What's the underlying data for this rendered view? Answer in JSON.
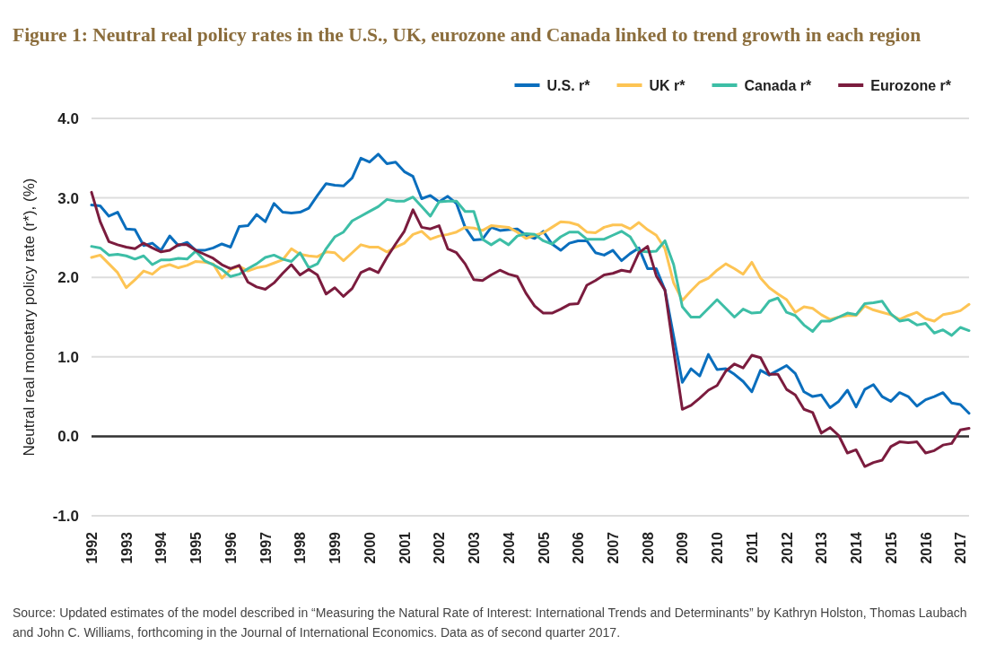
{
  "chart_data": {
    "type": "line",
    "title": "Figure 1: Neutral real policy rates in the U.S., UK, eurozone and Canada linked to trend growth in each region",
    "ylabel": "Neutral real monetary policy rate (r*), (%)",
    "x": [
      1992,
      1992.25,
      1992.5,
      1992.75,
      1993,
      1993.25,
      1993.5,
      1993.75,
      1994,
      1994.25,
      1994.5,
      1994.75,
      1995,
      1995.25,
      1995.5,
      1995.75,
      1996,
      1996.25,
      1996.5,
      1996.75,
      1997,
      1997.25,
      1997.5,
      1997.75,
      1998,
      1998.25,
      1998.5,
      1998.75,
      1999,
      1999.25,
      1999.5,
      1999.75,
      2000,
      2000.25,
      2000.5,
      2000.75,
      2001,
      2001.25,
      2001.5,
      2001.75,
      2002,
      2002.25,
      2002.5,
      2002.75,
      2003,
      2003.25,
      2003.5,
      2003.75,
      2004,
      2004.25,
      2004.5,
      2004.75,
      2005,
      2005.25,
      2005.5,
      2005.75,
      2006,
      2006.25,
      2006.5,
      2006.75,
      2007,
      2007.25,
      2007.5,
      2007.75,
      2008,
      2008.25,
      2008.5,
      2008.75,
      2009,
      2009.25,
      2009.5,
      2009.75,
      2010,
      2010.25,
      2010.5,
      2010.75,
      2011,
      2011.25,
      2011.5,
      2011.75,
      2012,
      2012.25,
      2012.5,
      2012.75,
      2013,
      2013.25,
      2013.5,
      2013.75,
      2014,
      2014.25,
      2014.5,
      2014.75,
      2015,
      2015.25,
      2015.5,
      2015.75,
      2016,
      2016.25,
      2016.5,
      2016.75,
      2017,
      2017.25
    ],
    "series": [
      {
        "name": "U.S. r*",
        "color": "#0a6ebd",
        "values": [
          2.91,
          2.9,
          2.77,
          2.82,
          2.61,
          2.6,
          2.4,
          2.43,
          2.34,
          2.52,
          2.4,
          2.44,
          2.34,
          2.34,
          2.37,
          2.42,
          2.38,
          2.64,
          2.65,
          2.79,
          2.7,
          2.93,
          2.82,
          2.81,
          2.82,
          2.87,
          3.03,
          3.18,
          3.16,
          3.15,
          3.25,
          3.5,
          3.45,
          3.55,
          3.43,
          3.45,
          3.33,
          3.27,
          2.99,
          3.03,
          2.95,
          3.02,
          2.93,
          2.63,
          2.47,
          2.48,
          2.63,
          2.59,
          2.6,
          2.61,
          2.53,
          2.49,
          2.58,
          2.42,
          2.34,
          2.43,
          2.46,
          2.46,
          2.31,
          2.28,
          2.34,
          2.21,
          2.3,
          2.37,
          2.11,
          2.11,
          1.84,
          1.26,
          0.68,
          0.85,
          0.76,
          1.03,
          0.84,
          0.85,
          0.78,
          0.69,
          0.56,
          0.83,
          0.77,
          0.83,
          0.89,
          0.79,
          0.56,
          0.5,
          0.52,
          0.36,
          0.44,
          0.58,
          0.37,
          0.59,
          0.65,
          0.5,
          0.44,
          0.55,
          0.5,
          0.38,
          0.46,
          0.5,
          0.55,
          0.42,
          0.4,
          0.29
        ]
      },
      {
        "name": "UK r*",
        "color": "#fdc454",
        "values": [
          2.25,
          2.28,
          2.17,
          2.06,
          1.87,
          1.97,
          2.08,
          2.04,
          2.13,
          2.16,
          2.12,
          2.15,
          2.2,
          2.19,
          2.17,
          1.99,
          2.1,
          2.14,
          2.08,
          2.12,
          2.14,
          2.18,
          2.22,
          2.36,
          2.29,
          2.27,
          2.26,
          2.32,
          2.31,
          2.21,
          2.31,
          2.41,
          2.38,
          2.38,
          2.32,
          2.38,
          2.43,
          2.54,
          2.58,
          2.48,
          2.52,
          2.54,
          2.57,
          2.63,
          2.62,
          2.59,
          2.65,
          2.64,
          2.63,
          2.57,
          2.49,
          2.53,
          2.56,
          2.63,
          2.7,
          2.69,
          2.66,
          2.57,
          2.56,
          2.63,
          2.66,
          2.66,
          2.61,
          2.69,
          2.6,
          2.53,
          2.36,
          1.93,
          1.71,
          1.83,
          1.94,
          1.99,
          2.09,
          2.17,
          2.11,
          2.04,
          2.19,
          1.99,
          1.87,
          1.79,
          1.72,
          1.56,
          1.63,
          1.61,
          1.53,
          1.47,
          1.5,
          1.52,
          1.52,
          1.64,
          1.59,
          1.56,
          1.53,
          1.47,
          1.52,
          1.56,
          1.48,
          1.45,
          1.53,
          1.55,
          1.58,
          1.66
        ]
      },
      {
        "name": "Canada r*",
        "color": "#3dbea6",
        "values": [
          2.39,
          2.37,
          2.28,
          2.29,
          2.27,
          2.23,
          2.27,
          2.16,
          2.22,
          2.22,
          2.24,
          2.23,
          2.33,
          2.21,
          2.16,
          2.1,
          2.01,
          2.04,
          2.11,
          2.17,
          2.25,
          2.28,
          2.23,
          2.2,
          2.31,
          2.12,
          2.17,
          2.36,
          2.51,
          2.57,
          2.71,
          2.77,
          2.83,
          2.89,
          2.98,
          2.96,
          2.96,
          3.01,
          2.89,
          2.77,
          2.95,
          2.96,
          2.96,
          2.83,
          2.83,
          2.48,
          2.41,
          2.48,
          2.41,
          2.52,
          2.55,
          2.54,
          2.46,
          2.42,
          2.51,
          2.57,
          2.57,
          2.48,
          2.48,
          2.48,
          2.53,
          2.58,
          2.51,
          2.33,
          2.32,
          2.33,
          2.46,
          2.16,
          1.63,
          1.5,
          1.5,
          1.61,
          1.72,
          1.61,
          1.5,
          1.6,
          1.55,
          1.56,
          1.7,
          1.74,
          1.56,
          1.52,
          1.4,
          1.32,
          1.45,
          1.45,
          1.5,
          1.55,
          1.53,
          1.67,
          1.68,
          1.7,
          1.54,
          1.45,
          1.47,
          1.4,
          1.42,
          1.3,
          1.34,
          1.27,
          1.37,
          1.33
        ]
      },
      {
        "name": "Eurozone r*",
        "color": "#7b1c3e",
        "values": [
          3.07,
          2.7,
          2.45,
          2.41,
          2.38,
          2.36,
          2.43,
          2.37,
          2.32,
          2.34,
          2.41,
          2.41,
          2.34,
          2.29,
          2.24,
          2.16,
          2.11,
          2.15,
          1.94,
          1.88,
          1.85,
          1.93,
          2.05,
          2.16,
          2.03,
          2.1,
          2.03,
          1.79,
          1.87,
          1.76,
          1.86,
          2.06,
          2.11,
          2.06,
          2.25,
          2.42,
          2.58,
          2.85,
          2.63,
          2.61,
          2.65,
          2.36,
          2.31,
          2.17,
          1.97,
          1.96,
          2.03,
          2.09,
          2.04,
          2.01,
          1.8,
          1.64,
          1.55,
          1.55,
          1.6,
          1.66,
          1.67,
          1.9,
          1.96,
          2.03,
          2.05,
          2.09,
          2.07,
          2.31,
          2.39,
          2.02,
          1.84,
          1.08,
          0.34,
          0.39,
          0.48,
          0.58,
          0.64,
          0.82,
          0.91,
          0.86,
          1.02,
          0.99,
          0.78,
          0.78,
          0.59,
          0.52,
          0.34,
          0.3,
          0.04,
          0.11,
          0.01,
          -0.21,
          -0.17,
          -0.38,
          -0.33,
          -0.3,
          -0.13,
          -0.07,
          -0.08,
          -0.07,
          -0.21,
          -0.18,
          -0.11,
          -0.09,
          0.08,
          0.1
        ]
      }
    ],
    "xlim": [
      1992,
      2017.25
    ],
    "xticks": [
      1992,
      1993,
      1994,
      1995,
      1996,
      1997,
      1998,
      1999,
      2000,
      2001,
      2002,
      2003,
      2004,
      2005,
      2006,
      2007,
      2008,
      2009,
      2010,
      2011,
      2012,
      2013,
      2014,
      2015,
      2016,
      2017
    ],
    "ylim": [
      -1.0,
      4.0
    ],
    "yticks": [
      {
        "value": -1,
        "label": "-1.0"
      },
      {
        "value": 0,
        "label": "0.0"
      },
      {
        "value": 1,
        "label": "1.0"
      },
      {
        "value": 2,
        "label": "2.0"
      },
      {
        "value": 3,
        "label": "3.0"
      },
      {
        "value": 4,
        "label": "4.0"
      }
    ],
    "ref_lines": [
      {
        "axis": "y",
        "value": 0,
        "label": null,
        "color": "#333333"
      }
    ],
    "grid": "y",
    "legend": "top right",
    "annotations": [
      "Source: Updated estimates of the model described in “Measuring the Natural Rate of Interest: International Trends and Determinants” by Kathryn Holston, Thomas Laubach and John C. Williams, forthcoming in the Journal of International Economics. Data as of second quarter 2017."
    ]
  }
}
